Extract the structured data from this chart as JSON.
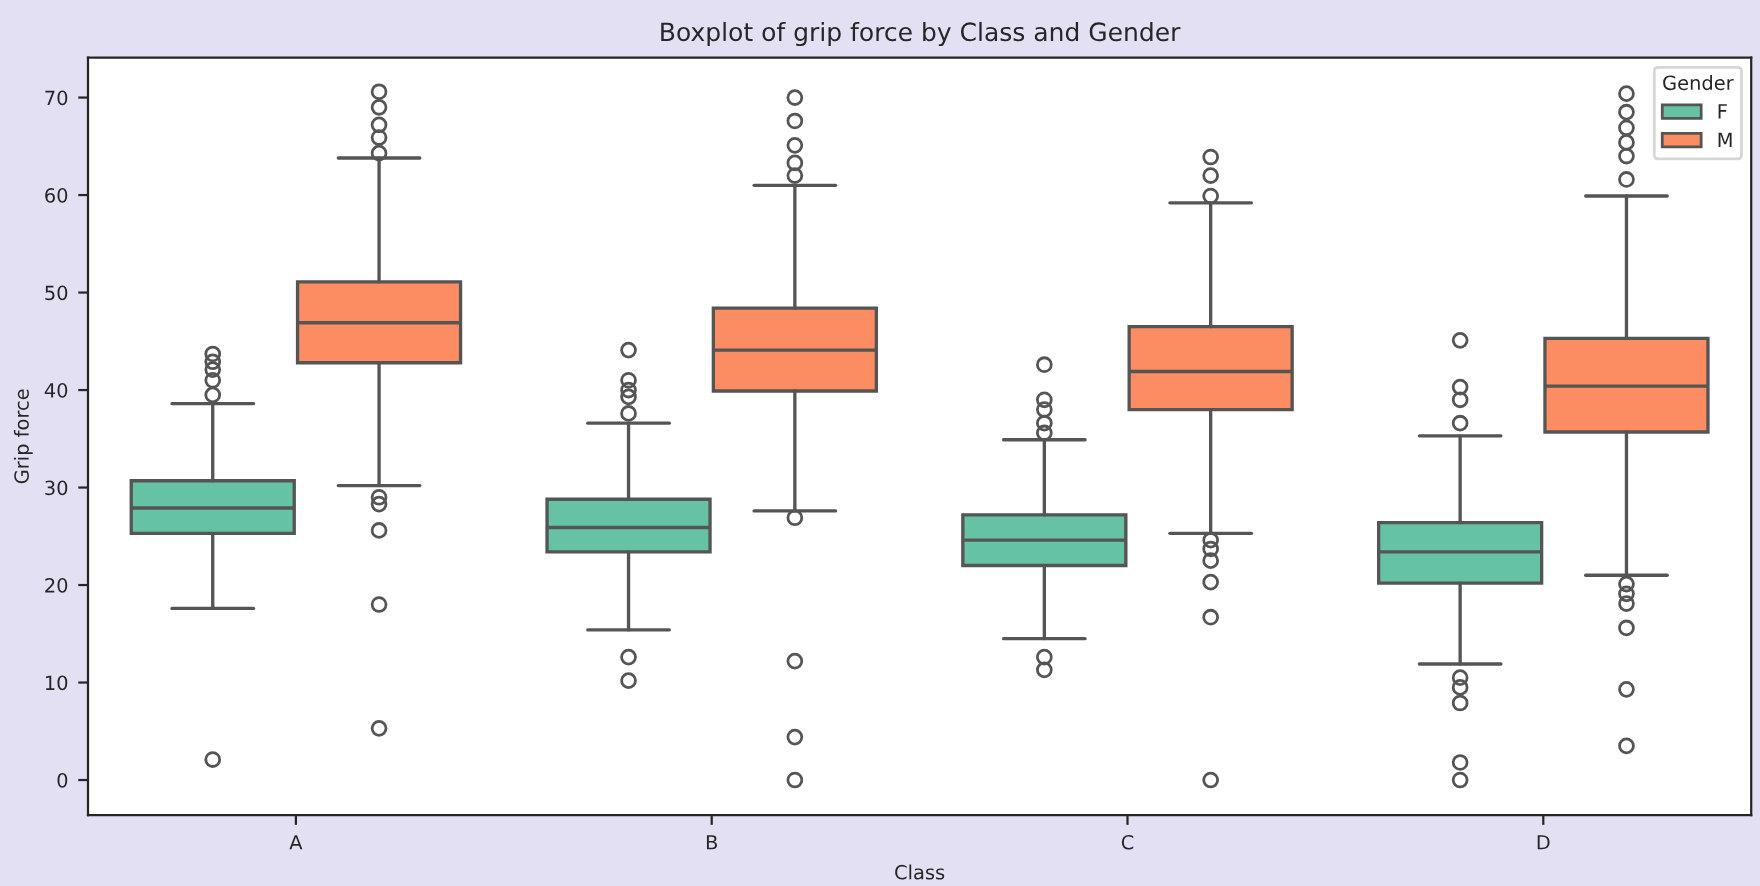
{
  "chart_data": {
    "type": "box",
    "title": "Boxplot of grip force by Class and Gender",
    "xlabel": "Class",
    "ylabel": "Grip force",
    "legend_title": "Gender",
    "legend": "top right",
    "grid": false,
    "categories": [
      "A",
      "B",
      "C",
      "D"
    ],
    "ylim": [
      -3.6,
      74.1
    ],
    "yticks": [
      0,
      10,
      20,
      30,
      40,
      50,
      60,
      70
    ],
    "series": [
      {
        "name": "F",
        "color": "#66c2a5",
        "boxes": [
          {
            "low": 17.6,
            "q1": 25.3,
            "median": 27.9,
            "q3": 30.7,
            "high": 38.6,
            "outliers": [
              2.1,
              39.5,
              41.0,
              42.1,
              42.9,
              43.7
            ]
          },
          {
            "low": 15.4,
            "q1": 23.4,
            "median": 25.9,
            "q3": 28.8,
            "high": 36.6,
            "outliers": [
              10.2,
              12.6,
              37.6,
              39.3,
              40.0,
              41.0,
              44.1
            ]
          },
          {
            "low": 14.5,
            "q1": 22.0,
            "median": 24.6,
            "q3": 27.2,
            "high": 34.9,
            "outliers": [
              11.3,
              12.6,
              35.6,
              36.6,
              38.0,
              39.0,
              42.6
            ]
          },
          {
            "low": 11.9,
            "q1": 20.2,
            "median": 23.4,
            "q3": 26.4,
            "high": 35.3,
            "outliers": [
              0,
              1.8,
              7.9,
              9.5,
              10.5,
              36.6,
              39.0,
              40.3,
              45.1
            ]
          }
        ]
      },
      {
        "name": "M",
        "color": "#fc8d62",
        "boxes": [
          {
            "low": 30.2,
            "q1": 42.8,
            "median": 46.9,
            "q3": 51.1,
            "high": 63.8,
            "outliers": [
              5.3,
              18.0,
              25.6,
              28.3,
              29.0,
              64.3,
              65.9,
              67.2,
              69.0,
              70.6
            ]
          },
          {
            "low": 27.6,
            "q1": 39.9,
            "median": 44.1,
            "q3": 48.4,
            "high": 61.0,
            "outliers": [
              0,
              4.4,
              12.2,
              26.9,
              62.0,
              63.3,
              65.1,
              67.6,
              70.0
            ]
          },
          {
            "low": 25.3,
            "q1": 38.0,
            "median": 41.9,
            "q3": 46.5,
            "high": 59.2,
            "outliers": [
              0,
              16.7,
              20.3,
              22.5,
              23.7,
              24.6,
              59.9,
              62.0,
              63.9
            ]
          },
          {
            "low": 21.0,
            "q1": 35.7,
            "median": 40.4,
            "q3": 45.3,
            "high": 59.9,
            "outliers": [
              3.5,
              9.3,
              15.6,
              18.1,
              19.1,
              20.1,
              61.6,
              64.0,
              65.4,
              66.9,
              68.5,
              70.4
            ]
          }
        ]
      }
    ]
  }
}
